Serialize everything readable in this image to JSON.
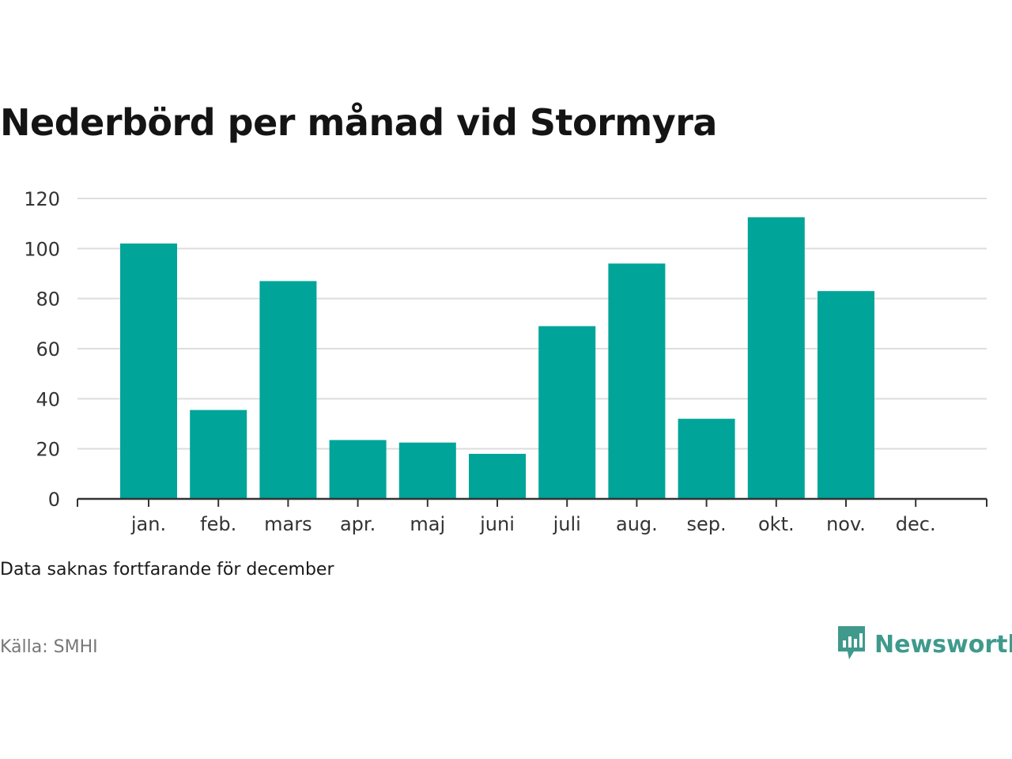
{
  "title": "Nederbörd per månad vid Stormyra",
  "note": "Data saknas fortfarande för december",
  "source": "Källa: SMHI",
  "brand": {
    "name": "Newsworthy",
    "icon": "newsworthy-logo-icon",
    "color": "#3f9a8c"
  },
  "colors": {
    "bar": "#00a499",
    "grid": "#dddddd",
    "axis": "#333333"
  },
  "chart_data": {
    "type": "bar",
    "categories": [
      "jan.",
      "feb.",
      "mars",
      "apr.",
      "maj",
      "juni",
      "juli",
      "aug.",
      "sep.",
      "okt.",
      "nov.",
      "dec."
    ],
    "values": [
      102,
      35.5,
      87,
      23.5,
      22.5,
      18,
      69,
      94,
      32,
      112.5,
      83,
      null
    ],
    "ylim": [
      0,
      120
    ],
    "yticks": [
      "0",
      "20",
      "40",
      "60",
      "80",
      "100",
      "120"
    ],
    "xlabel": "",
    "ylabel": "",
    "grid": true,
    "legend": "none"
  }
}
